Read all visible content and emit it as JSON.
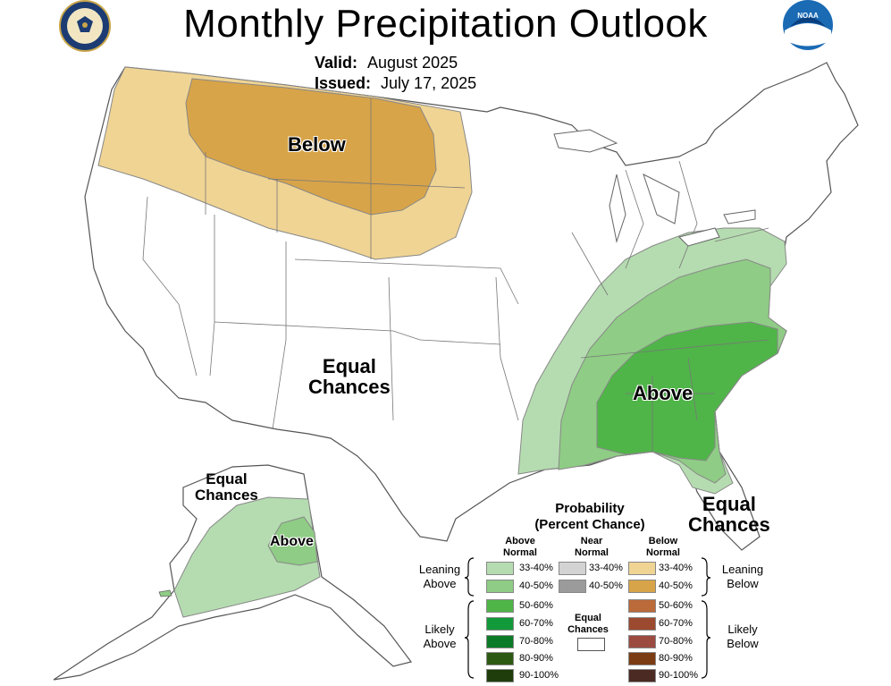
{
  "header": {
    "title": "Monthly Precipitation Outlook",
    "valid_label": "Valid:",
    "valid_value": "August 2025",
    "issued_label": "Issued:",
    "issued_value": "July 17, 2025"
  },
  "logos": {
    "left": "department-of-commerce-seal",
    "right": "noaa-logo",
    "right_text": "NOAA"
  },
  "regions": {
    "below_label": "Below",
    "ec_conus": [
      "Equal",
      "Chances"
    ],
    "above_label": "Above",
    "ec_florida": [
      "Equal",
      "Chances"
    ],
    "ec_alaska": [
      "Equal",
      "Chances"
    ],
    "above_alaska": "Above"
  },
  "legend": {
    "title": [
      "Probability",
      "(Percent Chance)"
    ],
    "above_head": [
      "Above",
      "Normal"
    ],
    "near_head": [
      "Near",
      "Normal"
    ],
    "below_head": [
      "Below",
      "Normal"
    ],
    "leaning_above": [
      "Leaning",
      "Above"
    ],
    "likely_above": [
      "Likely",
      "Above"
    ],
    "leaning_below": [
      "Leaning",
      "Below"
    ],
    "likely_below": [
      "Likely",
      "Below"
    ],
    "ec": [
      "Equal",
      "Chances"
    ],
    "above": [
      {
        "range": "33-40%",
        "color": "#b5dcb0"
      },
      {
        "range": "40-50%",
        "color": "#8fcc85"
      },
      {
        "range": "50-60%",
        "color": "#4fb548"
      },
      {
        "range": "60-70%",
        "color": "#129a3a"
      },
      {
        "range": "70-80%",
        "color": "#0b7b27"
      },
      {
        "range": "80-90%",
        "color": "#2d5a13"
      },
      {
        "range": "90-100%",
        "color": "#1e3d0b"
      }
    ],
    "near": [
      {
        "range": "33-40%",
        "color": "#d3d3d3"
      },
      {
        "range": "40-50%",
        "color": "#9b9b9b"
      }
    ],
    "below": [
      {
        "range": "33-40%",
        "color": "#f0d494"
      },
      {
        "range": "40-50%",
        "color": "#d8a449"
      },
      {
        "range": "50-60%",
        "color": "#bb6a3a"
      },
      {
        "range": "60-70%",
        "color": "#9b4a30"
      },
      {
        "range": "70-80%",
        "color": "#9c4b41"
      },
      {
        "range": "80-90%",
        "color": "#7b3b13"
      },
      {
        "range": "90-100%",
        "color": "#4a2a23"
      }
    ]
  }
}
